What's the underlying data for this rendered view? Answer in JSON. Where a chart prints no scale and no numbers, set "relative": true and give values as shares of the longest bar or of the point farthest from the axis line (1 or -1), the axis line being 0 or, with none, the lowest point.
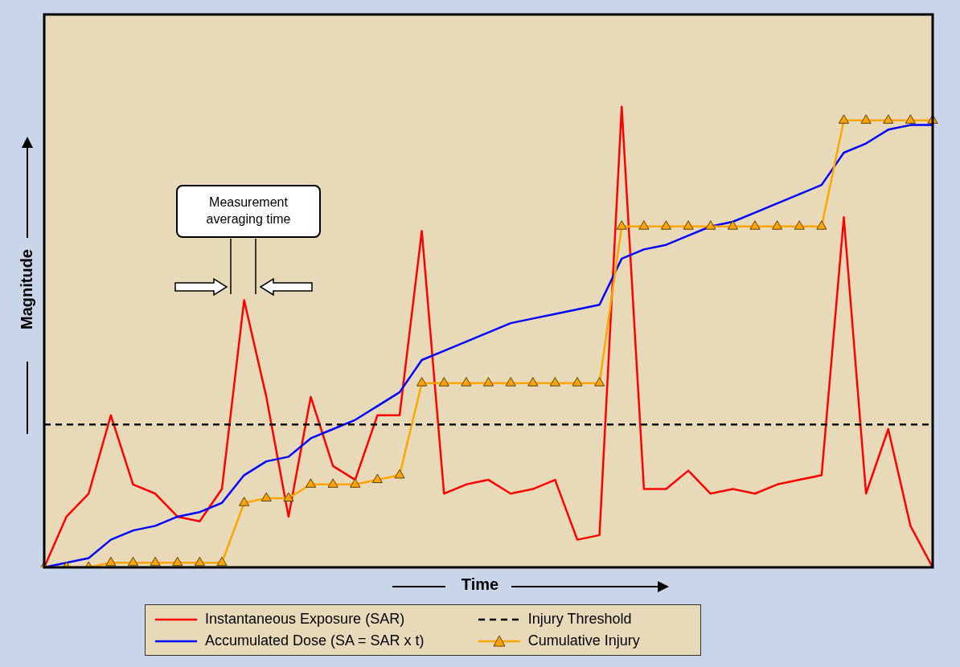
{
  "chart_data": {
    "type": "line",
    "relative": true,
    "xlabel": "Time",
    "ylabel": "Magnitude",
    "legend": "bottom",
    "categories": [
      null,
      null,
      null,
      null,
      null,
      null,
      null,
      null,
      null,
      null,
      null,
      null,
      null,
      null,
      null,
      null,
      null,
      null,
      null,
      null,
      null,
      null,
      null,
      null,
      null,
      null,
      null,
      null,
      null,
      null,
      null,
      null,
      null,
      null,
      null,
      null,
      null,
      null,
      null,
      null,
      null
    ],
    "series": [
      {
        "name": "Instantaneous Exposure (SAR)",
        "color": "#ff0000",
        "marker": "none",
        "values": [
          0,
          0.11,
          0.16,
          0.33,
          0.18,
          0.16,
          0.11,
          0.1,
          0.17,
          0.58,
          0.37,
          0.11,
          0.37,
          0.22,
          0.19,
          0.33,
          0.33,
          0.73,
          0.16,
          0.18,
          0.19,
          0.16,
          0.17,
          0.19,
          0.06,
          0.07,
          1.0,
          0.17,
          0.17,
          0.21,
          0.16,
          0.17,
          0.16,
          0.18,
          0.19,
          0.2,
          0.76,
          0.16,
          0.3,
          0.09,
          0
        ]
      },
      {
        "name": "Accumulated Dose (SA = SAR x t)",
        "color": "#0000ff",
        "marker": "none",
        "values": [
          0,
          0.01,
          0.02,
          0.06,
          0.08,
          0.09,
          0.11,
          0.12,
          0.14,
          0.2,
          0.23,
          0.24,
          0.28,
          0.3,
          0.32,
          0.35,
          0.38,
          0.45,
          0.47,
          0.49,
          0.51,
          0.53,
          0.54,
          0.55,
          0.56,
          0.57,
          0.67,
          0.69,
          0.7,
          0.72,
          0.74,
          0.75,
          0.77,
          0.79,
          0.81,
          0.83,
          0.9,
          0.92,
          0.95,
          0.96,
          0.96
        ]
      },
      {
        "name": "Cumulative Injury",
        "color": "#ffa500",
        "marker": "triangle",
        "values": [
          0,
          0,
          0,
          0.01,
          0.01,
          0.01,
          0.01,
          0.01,
          0.01,
          0.14,
          0.15,
          0.15,
          0.18,
          0.18,
          0.18,
          0.19,
          0.2,
          0.4,
          0.4,
          0.4,
          0.4,
          0.4,
          0.4,
          0.4,
          0.4,
          0.4,
          0.74,
          0.74,
          0.74,
          0.74,
          0.74,
          0.74,
          0.74,
          0.74,
          0.74,
          0.74,
          0.97,
          0.97,
          0.97,
          0.97,
          0.97
        ]
      }
    ],
    "ref_lines": [
      {
        "axis": "y",
        "value": 0.31,
        "label": "Injury Threshold",
        "color": "#000000",
        "line_style": "dashed"
      }
    ],
    "annotations": [
      "Measurement averaging time"
    ]
  }
}
